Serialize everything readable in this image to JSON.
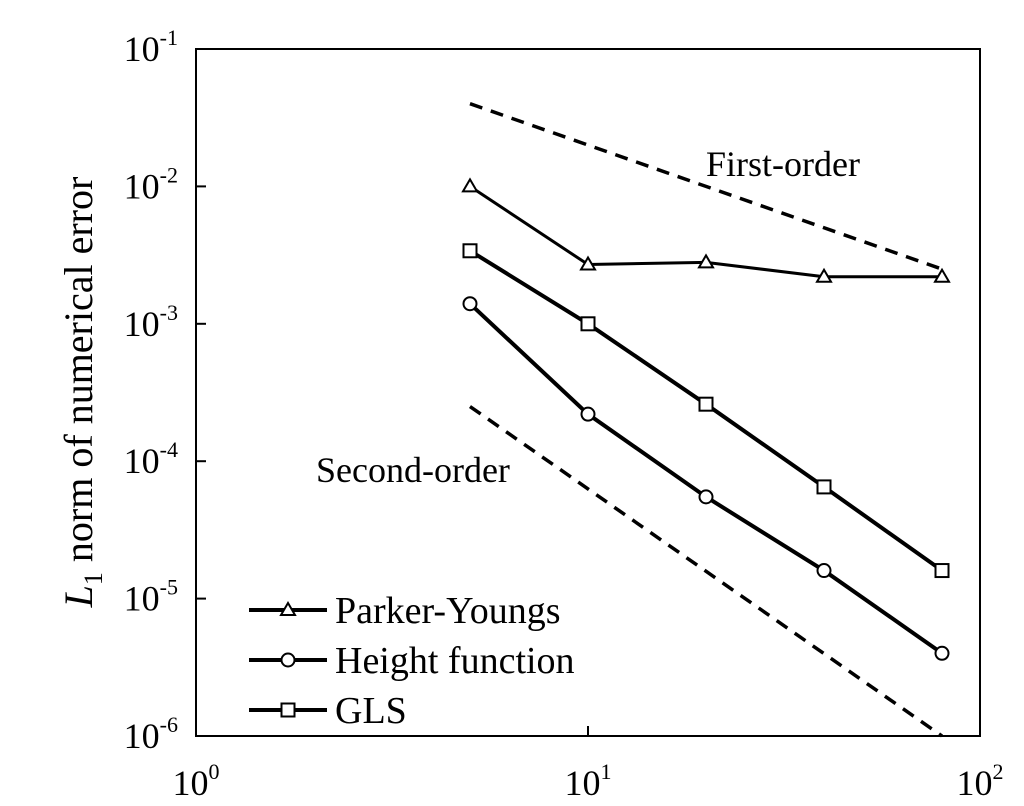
{
  "chart_data": {
    "type": "line",
    "xscale": "log",
    "yscale": "log",
    "xlim": [
      1,
      100
    ],
    "ylim": [
      1e-06,
      0.1
    ],
    "x_ticks": [
      {
        "base": "10",
        "exp": "0",
        "value": 1
      },
      {
        "base": "10",
        "exp": "1",
        "value": 10
      },
      {
        "base": "10",
        "exp": "2",
        "value": 100
      }
    ],
    "y_ticks": [
      {
        "base": "10",
        "exp": "-6",
        "value": 1e-06
      },
      {
        "base": "10",
        "exp": "-5",
        "value": 1e-05
      },
      {
        "base": "10",
        "exp": "-4",
        "value": 0.0001
      },
      {
        "base": "10",
        "exp": "-3",
        "value": 0.001
      },
      {
        "base": "10",
        "exp": "-2",
        "value": 0.01
      },
      {
        "base": "10",
        "exp": "-1",
        "value": 0.1
      }
    ],
    "ylabel_prefix": "L",
    "ylabel_sub": "1",
    "ylabel_rest": " norm of numerical error",
    "xlabel": "",
    "grid": false,
    "legend_position": "bottom-left",
    "series": [
      {
        "name": "Parker-Youngs",
        "marker": "triangle",
        "x": [
          5,
          10,
          20,
          40,
          80
        ],
        "y": [
          0.01,
          0.0027,
          0.0028,
          0.0022,
          0.0022
        ]
      },
      {
        "name": "Height function",
        "marker": "circle",
        "x": [
          5,
          10,
          20,
          40,
          80
        ],
        "y": [
          0.0014,
          0.00022,
          5.5e-05,
          1.6e-05,
          4e-06
        ]
      },
      {
        "name": "GLS",
        "marker": "square",
        "x": [
          5,
          10,
          20,
          40,
          80
        ],
        "y": [
          0.0034,
          0.001,
          0.00026,
          6.5e-05,
          1.6e-05
        ]
      }
    ],
    "reference_lines": [
      {
        "label": "First-order",
        "x": [
          5,
          80
        ],
        "y": [
          0.04,
          0.0025
        ]
      },
      {
        "label": "Second-order",
        "x": [
          5,
          80
        ],
        "y": [
          0.00025,
          1e-06
        ]
      }
    ]
  }
}
